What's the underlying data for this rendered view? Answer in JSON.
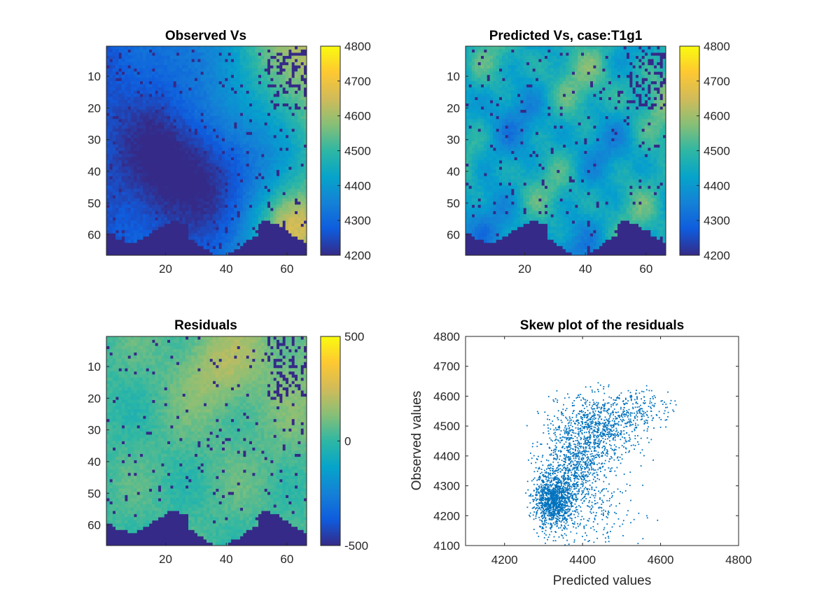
{
  "chart_data": [
    {
      "type": "heatmap",
      "title": "Observed Vs",
      "x_ticks": [
        "20",
        "40",
        "60"
      ],
      "y_ticks": [
        "10",
        "20",
        "30",
        "40",
        "50",
        "60"
      ],
      "grid_size": [
        66,
        66
      ],
      "colorbar": {
        "clim": [
          4200,
          4800
        ],
        "ticks": [
          "4200",
          "4300",
          "4400",
          "4500",
          "4600",
          "4700",
          "4800"
        ]
      },
      "colormap": "parula"
    },
    {
      "type": "heatmap",
      "title": "Predicted Vs, case:T1g1",
      "x_ticks": [
        "20",
        "40",
        "60"
      ],
      "y_ticks": [
        "10",
        "20",
        "30",
        "40",
        "50",
        "60"
      ],
      "grid_size": [
        66,
        66
      ],
      "colorbar": {
        "clim": [
          4200,
          4800
        ],
        "ticks": [
          "4200",
          "4300",
          "4400",
          "4500",
          "4600",
          "4700",
          "4800"
        ]
      },
      "colormap": "parula"
    },
    {
      "type": "heatmap",
      "title": "Residuals",
      "x_ticks": [
        "20",
        "40",
        "60"
      ],
      "y_ticks": [
        "10",
        "20",
        "30",
        "40",
        "50",
        "60"
      ],
      "grid_size": [
        66,
        66
      ],
      "colorbar": {
        "clim": [
          -500,
          500
        ],
        "ticks": [
          "-500",
          "0",
          "500"
        ]
      },
      "colormap": "parula"
    },
    {
      "type": "scatter",
      "title": "Skew plot of the residuals",
      "xlabel": "Predicted values",
      "ylabel": "Observed values",
      "xlim": [
        4100,
        4800
      ],
      "ylim": [
        4100,
        4800
      ],
      "x_ticks": [
        "4200",
        "4400",
        "4600",
        "4800"
      ],
      "y_ticks": [
        "4100",
        "4200",
        "4300",
        "4400",
        "4500",
        "4600",
        "4700",
        "4800"
      ],
      "marker_color": "#0072bd",
      "series": [
        {
          "clusters": [
            {
              "center": [
                4325,
                4250
              ],
              "spread": [
                25,
                45
              ],
              "count": 1100
            },
            {
              "center": [
                4380,
                4370
              ],
              "spread": [
                45,
                80
              ],
              "count": 900
            },
            {
              "center": [
                4450,
                4500
              ],
              "spread": [
                55,
                55
              ],
              "count": 700
            },
            {
              "center": [
                4560,
                4560
              ],
              "spread": [
                40,
                35
              ],
              "count": 150
            },
            {
              "center": [
                4420,
                4200
              ],
              "spread": [
                70,
                60
              ],
              "count": 180
            }
          ],
          "x_range": [
            4250,
            4640
          ],
          "y_range": [
            4100,
            4645
          ]
        }
      ]
    }
  ]
}
